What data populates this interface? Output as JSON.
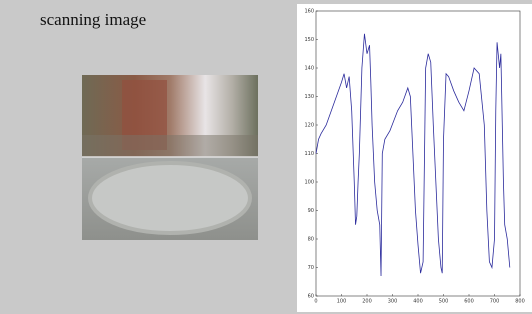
{
  "heading": "scanning image",
  "chart_data": {
    "type": "line",
    "x": [
      0,
      10,
      20,
      40,
      60,
      80,
      100,
      110,
      120,
      130,
      140,
      150,
      155,
      160,
      165,
      170,
      180,
      190,
      200,
      210,
      215,
      220,
      230,
      240,
      250,
      255,
      260,
      270,
      290,
      320,
      340,
      360,
      370,
      380,
      390,
      400,
      410,
      420,
      430,
      440,
      450,
      460,
      470,
      480,
      490,
      495,
      500,
      510,
      520,
      540,
      560,
      580,
      600,
      620,
      640,
      660,
      670,
      680,
      690,
      700,
      705,
      710,
      720,
      725,
      735,
      740,
      750,
      760
    ],
    "series": [
      {
        "color": "#2b2b9c",
        "values": [
          110,
          115,
          117,
          120,
          125,
          130,
          135,
          138,
          133,
          137,
          125,
          100,
          85,
          88,
          100,
          110,
          140,
          152,
          145,
          148,
          135,
          120,
          100,
          90,
          85,
          67,
          110,
          115,
          118,
          125,
          128,
          133,
          130,
          110,
          90,
          78,
          68,
          72,
          140,
          145,
          142,
          120,
          100,
          80,
          70,
          68,
          115,
          138,
          137,
          132,
          128,
          125,
          132,
          140,
          138,
          120,
          90,
          72,
          70,
          80,
          125,
          149,
          140,
          145,
          100,
          85,
          80,
          70
        ]
      }
    ],
    "xlim": [
      0,
      800
    ],
    "xticks": [
      0,
      100,
      200,
      300,
      400,
      500,
      600,
      700,
      800
    ],
    "ylim": [
      60,
      160
    ],
    "yticks": [
      60,
      70,
      80,
      90,
      100,
      110,
      120,
      130,
      140,
      150,
      160
    ]
  }
}
